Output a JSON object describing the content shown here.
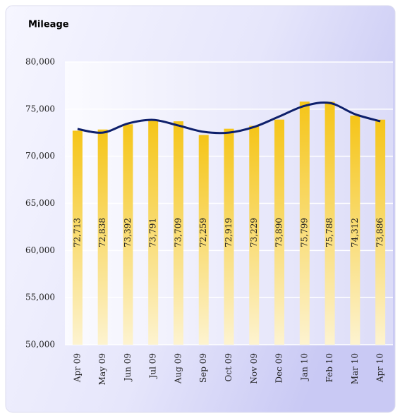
{
  "chart_data": {
    "type": "bar",
    "title": "Mileage",
    "categories": [
      "Apr 09",
      "May 09",
      "Jun 09",
      "Jul 09",
      "Aug 09",
      "Sep 09",
      "Oct 09",
      "Nov 09",
      "Dec 09",
      "Jan 10",
      "Feb 10",
      "Mar 10",
      "Apr 10"
    ],
    "series": [
      {
        "type": "bar",
        "color": "#f5c518",
        "values": [
          72713,
          72838,
          73392,
          73791,
          73709,
          72259,
          72919,
          73229,
          73890,
          75799,
          75788,
          74312,
          73886
        ],
        "value_labels": [
          "72,713",
          "72,838",
          "73,392",
          "73,791",
          "73,709",
          "72,259",
          "72,919",
          "73,229",
          "73,890",
          "75,799",
          "75,788",
          "74,312",
          "73,886"
        ]
      },
      {
        "type": "line",
        "color": "#0d1f6b",
        "values": [
          72890,
          72510,
          73480,
          73860,
          73260,
          72590,
          72510,
          73110,
          74230,
          75350,
          75650,
          74460,
          73710
        ]
      }
    ],
    "ylim": [
      50000,
      80000
    ],
    "yticks": [
      {
        "value": 50000,
        "label": "50,000"
      },
      {
        "value": 55000,
        "label": "55,000"
      },
      {
        "value": 60000,
        "label": "60,000"
      },
      {
        "value": 65000,
        "label": "65,000"
      },
      {
        "value": 70000,
        "label": "70,000"
      },
      {
        "value": 75000,
        "label": "75,000"
      },
      {
        "value": 80000,
        "label": "80,000"
      }
    ],
    "grid": true
  }
}
